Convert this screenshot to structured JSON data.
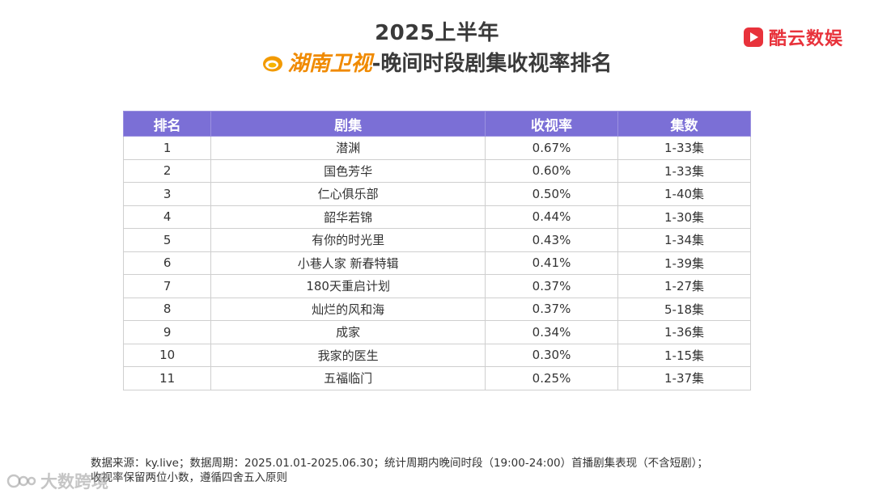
{
  "title": {
    "line1": "2025上半年",
    "channel": "湖南卫视",
    "line2_rest": "-晚间时段剧集收视率排名"
  },
  "brand": {
    "name": "酷云数娱",
    "color": "#e8323b",
    "icon": "play-icon"
  },
  "table": {
    "header_color": "#7b6fd6",
    "headers": [
      "排名",
      "剧集",
      "收视率",
      "集数"
    ],
    "rows": [
      {
        "rank": "1",
        "show": "潜渊",
        "rating": "0.67%",
        "episodes": "1-33集"
      },
      {
        "rank": "2",
        "show": "国色芳华",
        "rating": "0.60%",
        "episodes": "1-33集"
      },
      {
        "rank": "3",
        "show": "仁心俱乐部",
        "rating": "0.50%",
        "episodes": "1-40集"
      },
      {
        "rank": "4",
        "show": "韶华若锦",
        "rating": "0.44%",
        "episodes": "1-30集"
      },
      {
        "rank": "5",
        "show": "有你的时光里",
        "rating": "0.43%",
        "episodes": "1-34集"
      },
      {
        "rank": "6",
        "show": "小巷人家 新春特辑",
        "rating": "0.41%",
        "episodes": "1-39集"
      },
      {
        "rank": "7",
        "show": "180天重启计划",
        "rating": "0.37%",
        "episodes": "1-27集"
      },
      {
        "rank": "8",
        "show": "灿烂的风和海",
        "rating": "0.37%",
        "episodes": "5-18集"
      },
      {
        "rank": "9",
        "show": "成家",
        "rating": "0.34%",
        "episodes": "1-36集"
      },
      {
        "rank": "10",
        "show": "我家的医生",
        "rating": "0.30%",
        "episodes": "1-15集"
      },
      {
        "rank": "11",
        "show": "五福临门",
        "rating": "0.25%",
        "episodes": "1-37集"
      }
    ]
  },
  "footnote": {
    "line1": "数据来源：ky.live；数据周期：2025.01.01-2025.06.30；统计周期内晚间时段（19:00-24:00）首播剧集表现（不含短剧）；",
    "line2": "收视率保留两位小数，遵循四舍五入原则"
  },
  "watermark": {
    "text": "大数跨境"
  }
}
